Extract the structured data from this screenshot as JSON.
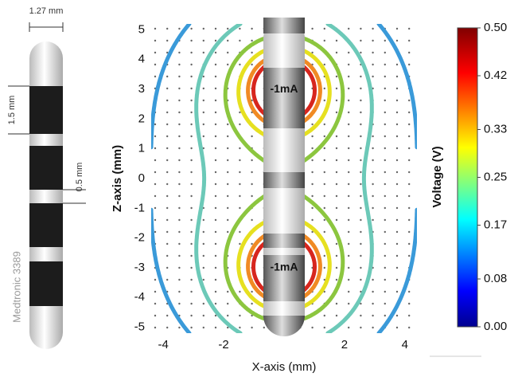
{
  "electrode": {
    "diameter": "1.27 mm",
    "contact_length": "1.5 mm",
    "spacing": "0.5 mm",
    "model": "Medtronic 3389"
  },
  "chart_data": {
    "type": "contour",
    "xlabel": "X-axis (mm)",
    "ylabel": "Z-axis (mm)",
    "xlim": [
      -4.4,
      4.4
    ],
    "xticks": [
      -4,
      -2,
      2,
      4
    ],
    "ylim": [
      -5.2,
      5.2
    ],
    "yticks": [
      5,
      4,
      3,
      2,
      1,
      0,
      -1,
      -2,
      -3,
      -4,
      -5
    ],
    "annotations": [
      "-1mA",
      "-1mA"
    ],
    "contours": [
      {
        "level": 0.15,
        "color": "#3a9ad9"
      },
      {
        "level": 0.2,
        "color": "#6cc9b8"
      },
      {
        "level": 0.27,
        "color": "#8cc63f"
      },
      {
        "level": 0.33,
        "color": "#e6e020"
      },
      {
        "level": 0.4,
        "color": "#f08a24"
      },
      {
        "level": 0.46,
        "color": "#d7261e"
      }
    ],
    "colorbar": {
      "label": "Voltage (V)",
      "lim": [
        0,
        0.5
      ],
      "ticks": [
        {
          "value": 0,
          "label": "0.00"
        },
        {
          "value": 0.08,
          "label": "0.08"
        },
        {
          "value": 0.17,
          "label": "0.17"
        },
        {
          "value": 0.25,
          "label": "0.25"
        },
        {
          "value": 0.33,
          "label": "0.33"
        },
        {
          "value": 0.42,
          "label": "0.42"
        },
        {
          "value": 0.5,
          "label": "0.50"
        }
      ]
    }
  }
}
